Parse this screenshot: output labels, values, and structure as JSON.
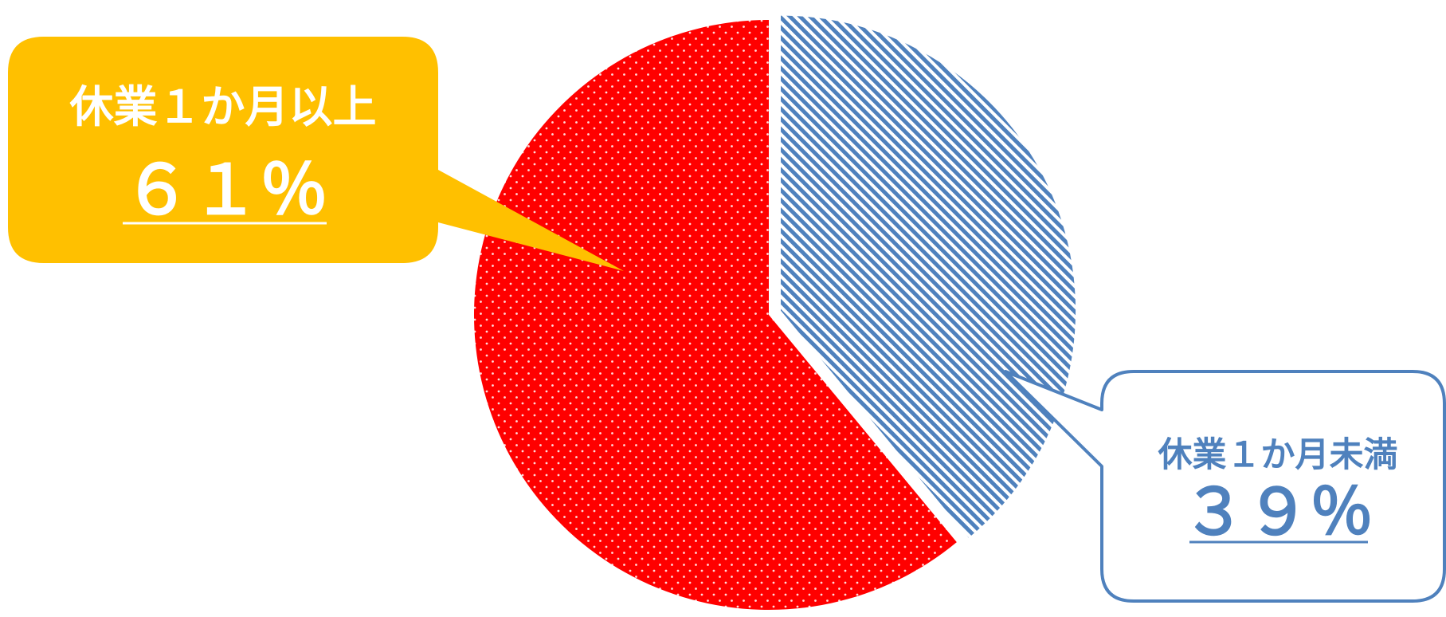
{
  "chart_data": {
    "type": "pie",
    "slices": [
      {
        "label": "休業１か月未満",
        "value": 39,
        "value_text": "３９％",
        "color": "#4f81bd",
        "pattern": "diagonal-stripes",
        "exploded": true
      },
      {
        "label": "休業１か月以上",
        "value": 61,
        "value_text": "６１％",
        "color": "#ff0000",
        "pattern": "white-dots"
      }
    ]
  },
  "callouts": {
    "over": {
      "fill": "#ffc000",
      "text_color": "#ffffff"
    },
    "under": {
      "fill": "#ffffff",
      "stroke": "#4f81bd",
      "text_color": "#4f81bd"
    }
  }
}
